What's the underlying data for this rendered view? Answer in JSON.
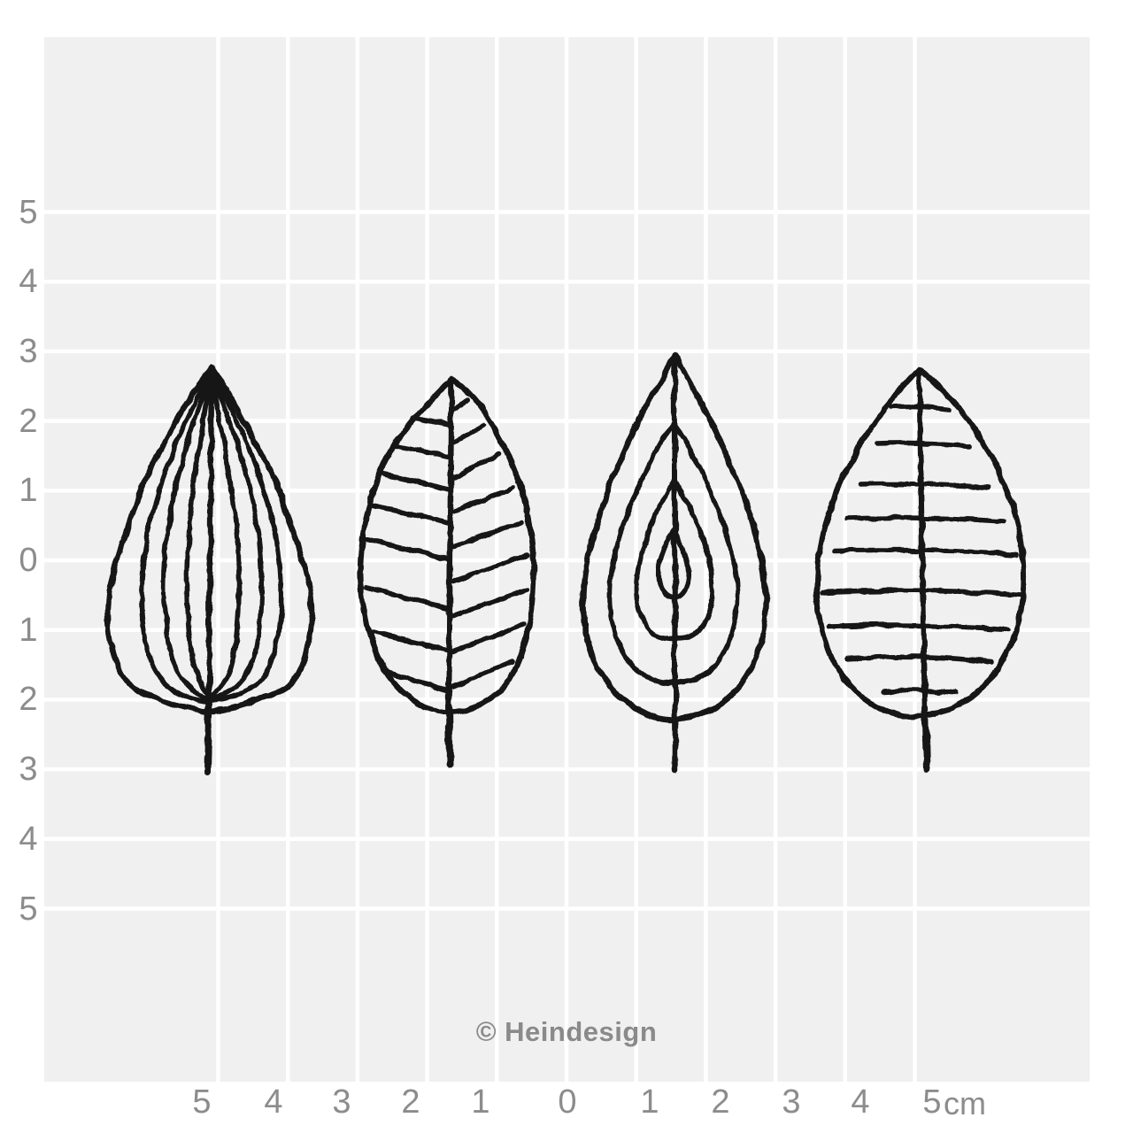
{
  "page": {
    "kind": "stamp-ruler-grid-image"
  },
  "axes": {
    "left_labels": [
      "5",
      "4",
      "3",
      "2",
      "1",
      "0",
      "1",
      "2",
      "3",
      "4",
      "5"
    ],
    "bottom_labels": [
      "5",
      "4",
      "3",
      "2",
      "1",
      "0",
      "1",
      "2",
      "3",
      "4",
      "5"
    ],
    "unit": "cm"
  },
  "watermark": {
    "text": "© Heindesign"
  },
  "stamps": [
    {
      "name": "leaf-longitudinal-veins"
    },
    {
      "name": "leaf-pinnate-veins"
    },
    {
      "name": "leaf-concentric-outlines"
    },
    {
      "name": "leaf-horizontal-veins"
    }
  ],
  "colors": {
    "background": "#ffffff",
    "grid_fill": "#f0f0f0",
    "grid_line": "#ffffff",
    "axis_label": "#8c8c8c",
    "watermark": "#8a8a8a",
    "ink": "#161616"
  }
}
